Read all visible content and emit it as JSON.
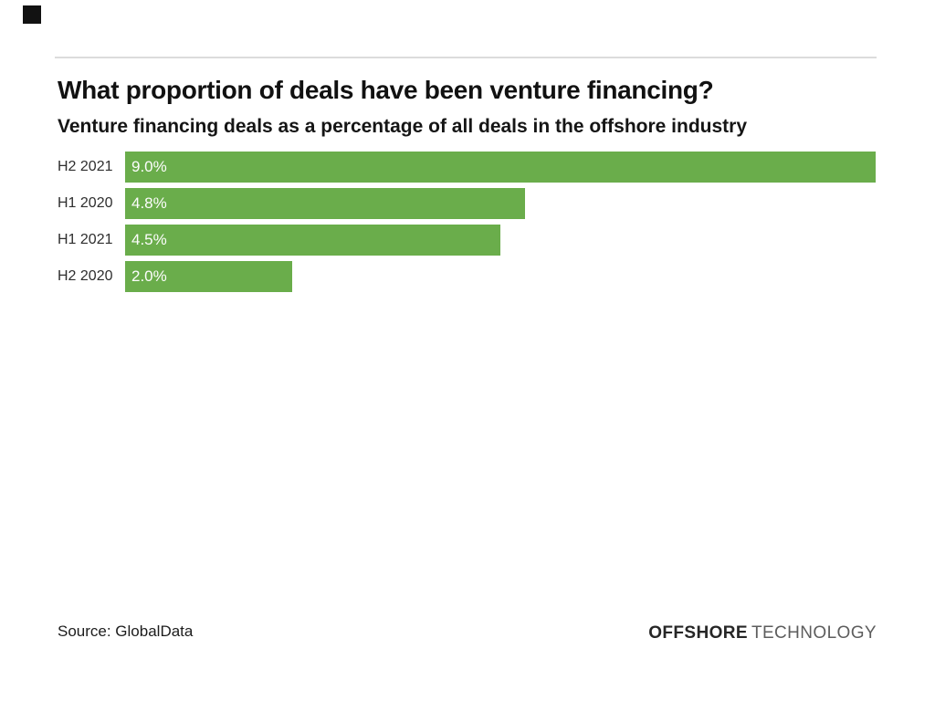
{
  "header": {
    "title": "What proportion of deals have been venture financing?",
    "subtitle": "Venture financing deals as a percentage of all deals in the offshore industry"
  },
  "chart_data": {
    "type": "bar",
    "orientation": "horizontal",
    "title": "What proportion of deals have been venture financing?",
    "subtitle": "Venture financing deals as a percentage of all deals in the offshore industry",
    "categories": [
      "H2 2021",
      "H1 2020",
      "H1 2021",
      "H2 2020"
    ],
    "values": [
      9.0,
      4.8,
      4.5,
      2.0
    ],
    "value_labels": [
      "9.0%",
      "4.8%",
      "4.5%",
      "2.0%"
    ],
    "unit": "%",
    "xlim": [
      0,
      9.0
    ],
    "grid": false,
    "legend": false,
    "bar_color": "#6aad4b"
  },
  "footer": {
    "source": "Source: GlobalData",
    "logo_primary": "OFFSHORE",
    "logo_secondary": "TECHNOLOGY"
  },
  "colors": {
    "bar_green": "#6aad4b",
    "divider": "#dcdcdc",
    "corner_square": "#121212",
    "category_text": "#2e2e2e",
    "value_text": "#fdfdfd",
    "logo_primary_color": "#262626",
    "logo_secondary_color": "#5d5d5d"
  }
}
